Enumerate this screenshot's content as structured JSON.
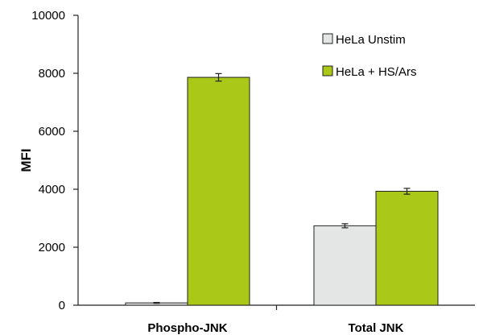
{
  "chart_data": {
    "type": "bar",
    "categories": [
      "Phospho-JNK",
      "Total JNK"
    ],
    "series": [
      {
        "name": "HeLa Unstim",
        "values": [
          80,
          2740
        ],
        "errors": [
          15,
          70
        ],
        "color": "#e4e6e6"
      },
      {
        "name": "HeLa + HS/Ars",
        "values": [
          7860,
          3930
        ],
        "errors": [
          130,
          100
        ],
        "color": "#a9c818"
      }
    ],
    "title": "",
    "xlabel": "",
    "ylabel": "MFI",
    "ylim": [
      0,
      10000
    ],
    "yticks": [
      0,
      2000,
      4000,
      6000,
      8000,
      10000
    ],
    "grid": false,
    "legend_position": "top-right",
    "error_bars": true
  }
}
